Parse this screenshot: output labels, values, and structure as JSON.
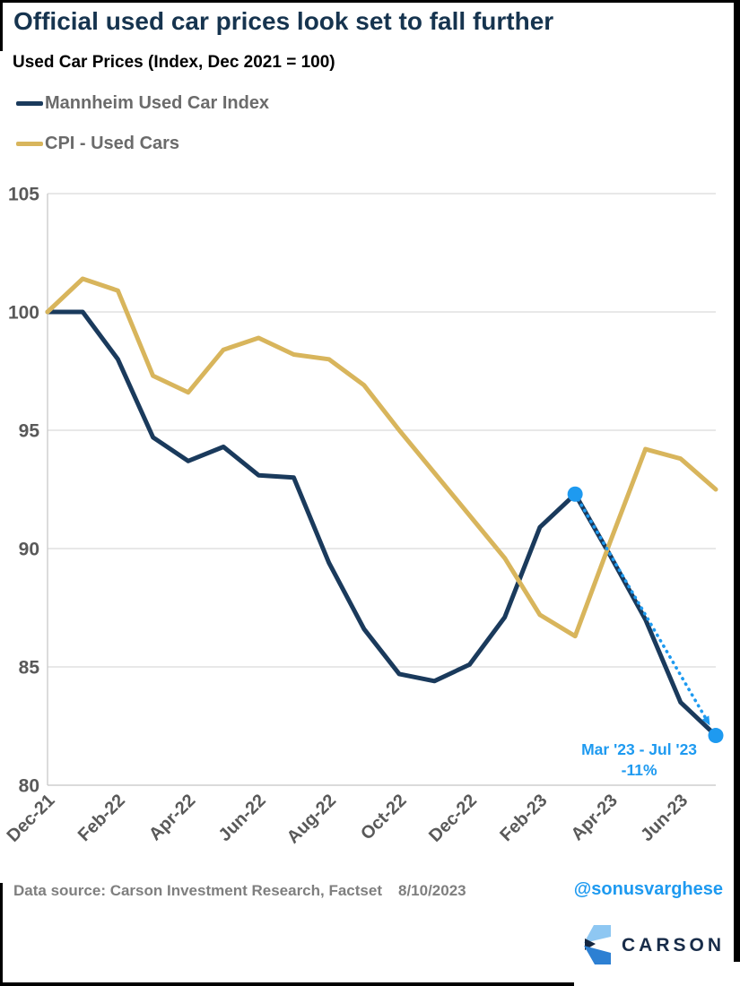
{
  "header": {
    "title": "Official used car prices look set to fall further",
    "subtitle": "Used Car Prices (Index, Dec 2021 = 100)"
  },
  "legend": [
    {
      "label": "Mannheim Used Car Index",
      "color": "#1a3a5c"
    },
    {
      "label": "CPI - Used Cars",
      "color": "#d8b55c"
    }
  ],
  "chart_data": {
    "type": "line",
    "x": [
      "Dec-21",
      "Jan-22",
      "Feb-22",
      "Mar-22",
      "Apr-22",
      "May-22",
      "Jun-22",
      "Jul-22",
      "Aug-22",
      "Sep-22",
      "Oct-22",
      "Nov-22",
      "Dec-22",
      "Jan-23",
      "Feb-23",
      "Mar-23",
      "Apr-23",
      "May-23",
      "Jun-23",
      "Jul-23"
    ],
    "x_tick_indices": [
      0,
      2,
      4,
      6,
      8,
      10,
      12,
      14,
      16,
      18
    ],
    "series": [
      {
        "name": "Mannheim Used Car Index",
        "color": "#1a3a5c",
        "values": [
          100.0,
          100.0,
          98.0,
          94.7,
          93.7,
          94.3,
          93.1,
          93.0,
          89.4,
          86.6,
          84.7,
          84.4,
          85.1,
          87.1,
          90.9,
          92.3,
          89.7,
          87.0,
          83.5,
          82.1
        ]
      },
      {
        "name": "CPI - Used Cars",
        "color": "#d8b55c",
        "values": [
          100.0,
          101.4,
          100.9,
          97.3,
          96.6,
          98.4,
          98.9,
          98.2,
          98.0,
          96.9,
          95.0,
          93.2,
          91.4,
          89.6,
          87.2,
          86.3,
          90.3,
          94.2,
          93.8,
          92.5
        ]
      }
    ],
    "ylim": [
      80,
      105
    ],
    "yticks": [
      80,
      85,
      90,
      95,
      100,
      105
    ],
    "grid": true,
    "legend_position": "top-left",
    "annotation": {
      "line1": "Mar '23 - Jul '23",
      "line2": "-11%",
      "color": "#1e9af0",
      "series": "Mannheim Used Car Index",
      "from_index": 15,
      "to_index": 19
    }
  },
  "footer": {
    "source": "Data source: Carson Investment Research, Factset",
    "date": "8/10/2023",
    "handle": "@sonusvarghese",
    "logo_text": "CARSON"
  },
  "colors": {
    "title": "#16344f",
    "axis_text": "#595959",
    "legend_text": "#6b6b6b",
    "footer_text": "#7f7f7f",
    "accent_blue": "#1e9af0",
    "gridline": "#d9d9d9",
    "axis_line": "#c9c9c9",
    "logo_light": "#8ec7f2",
    "logo_mid": "#2d80d3",
    "logo_dark": "#16263f"
  }
}
